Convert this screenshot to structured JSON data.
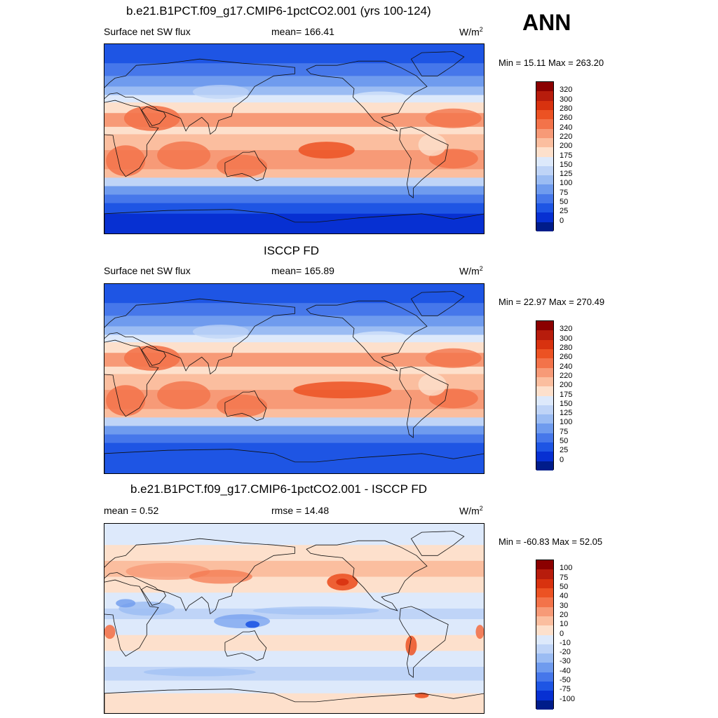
{
  "ann_label": "ANN",
  "unit": "W/m",
  "unit_sup": "2",
  "panels": {
    "model": {
      "title": "b.e21.B1PCT.f09_g17.CMIP6-1pctCO2.001 (yrs 100-124)",
      "left_label": "Surface net SW flux",
      "center_label": "mean= 166.41",
      "minmax": "Min =  15.11 Max = 263.20"
    },
    "obs": {
      "title": "ISCCP FD",
      "left_label": "Surface net SW flux",
      "center_label": "mean= 165.89",
      "minmax": "Min =  22.97 Max = 270.49"
    },
    "diff": {
      "title": "b.e21.B1PCT.f09_g17.CMIP6-1pctCO2.001 - ISCCP FD",
      "left_label": "mean =   0.52",
      "center_label": "rmse =  14.48",
      "minmax": "Min = -60.83 Max =  52.05"
    }
  },
  "colorbars": {
    "abs": {
      "labels": [
        "320",
        "300",
        "280",
        "260",
        "240",
        "220",
        "200",
        "175",
        "150",
        "125",
        "100",
        "75",
        "50",
        "25",
        "0"
      ],
      "colors": [
        "#8b0000",
        "#b71c0c",
        "#d8320f",
        "#ec5223",
        "#f3734a",
        "#f79a77",
        "#fbbe9f",
        "#fde0cc",
        "#dde9fb",
        "#bfd4f7",
        "#9bbcf3",
        "#6f9bee",
        "#4677ea",
        "#1e55e4",
        "#0730d2",
        "#001c8a"
      ]
    },
    "diff": {
      "labels": [
        "100",
        "75",
        "50",
        "40",
        "30",
        "20",
        "10",
        "0",
        "-10",
        "-20",
        "-30",
        "-40",
        "-50",
        "-75",
        "-100"
      ],
      "colors": [
        "#8b0000",
        "#b71c0c",
        "#d8320f",
        "#ec5223",
        "#f3734a",
        "#f79a77",
        "#fbbe9f",
        "#fde0cc",
        "#dde9fb",
        "#bfd4f7",
        "#9bbcf3",
        "#6f9bee",
        "#4677ea",
        "#1e55e4",
        "#0730d2",
        "#001c8a"
      ]
    }
  }
}
